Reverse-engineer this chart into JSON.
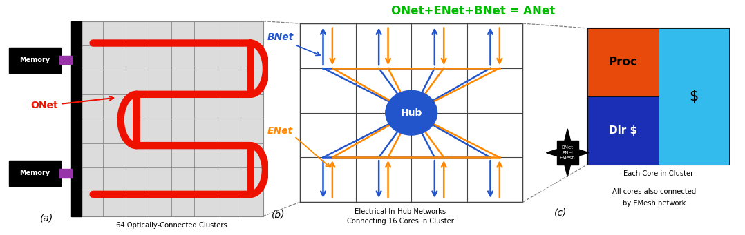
{
  "fig_width": 10.78,
  "fig_height": 3.41,
  "bg_color": "#ffffff",
  "title_text": "ONet+ENet+BNet = ANet",
  "title_color": "#00bb00",
  "panel_a_label": "(a)",
  "panel_b_label": "(b)",
  "panel_c_label": "(c)",
  "panel_a_caption": "64 Optically-Connected Clusters",
  "panel_b_caption1": "Electrical In-Hub Networks",
  "panel_b_caption2": "Connecting 16 Cores in Cluster",
  "panel_c_caption1": "Each Core in Cluster",
  "panel_c_caption2": "All cores also connected",
  "panel_c_caption3": "by EMesh network",
  "onet_color": "#ee1100",
  "bnet_color": "#2255cc",
  "enet_color": "#ff8800",
  "hub_color": "#2255cc",
  "proc_color": "#e84a0c",
  "cache_color": "#33bbee",
  "dir_color": "#1a2fb5",
  "light_gray": "#dcdcdc"
}
